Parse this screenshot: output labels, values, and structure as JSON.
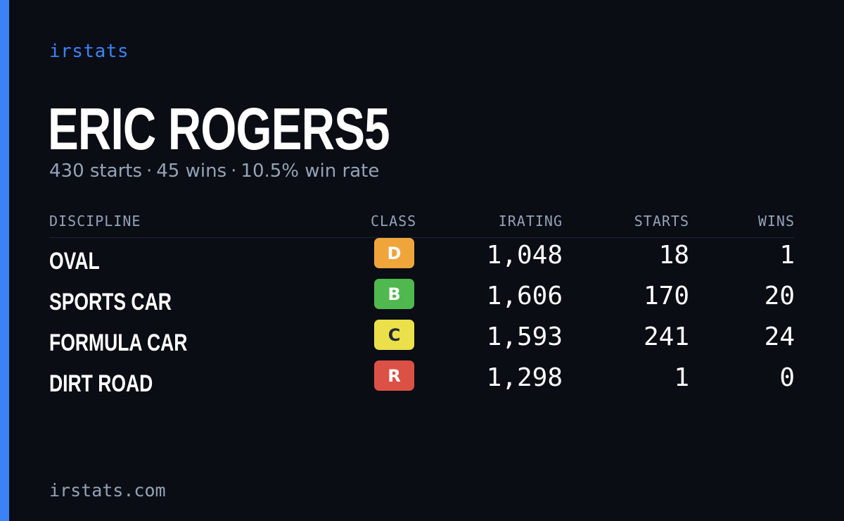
{
  "brand": "irstats",
  "driver": {
    "name": "ERIC ROGERS5",
    "starts_text": "430 starts",
    "wins_text": "45 wins",
    "win_rate_text": "10.5% win rate",
    "separator": "·"
  },
  "table": {
    "headers": {
      "discipline": "DISCIPLINE",
      "class": "CLASS",
      "irating": "IRATING",
      "starts": "STARTS",
      "wins": "WINS"
    },
    "rows": [
      {
        "discipline": "OVAL",
        "class": "D",
        "class_color": "#f0a53a",
        "class_text_dark": false,
        "irating": "1,048",
        "starts": "18",
        "wins": "1"
      },
      {
        "discipline": "SPORTS CAR",
        "class": "B",
        "class_color": "#4fb84f",
        "class_text_dark": false,
        "irating": "1,606",
        "starts": "170",
        "wins": "20"
      },
      {
        "discipline": "FORMULA CAR",
        "class": "C",
        "class_color": "#ece04a",
        "class_text_dark": true,
        "irating": "1,593",
        "starts": "241",
        "wins": "24"
      },
      {
        "discipline": "DIRT ROAD",
        "class": "R",
        "class_color": "#dc5145",
        "class_text_dark": false,
        "irating": "1,298",
        "starts": "1",
        "wins": "0"
      }
    ]
  },
  "footer": "irstats.com",
  "colors": {
    "background": "#0a0d14",
    "accent": "#3b82f6",
    "muted": "#94a3b8"
  }
}
